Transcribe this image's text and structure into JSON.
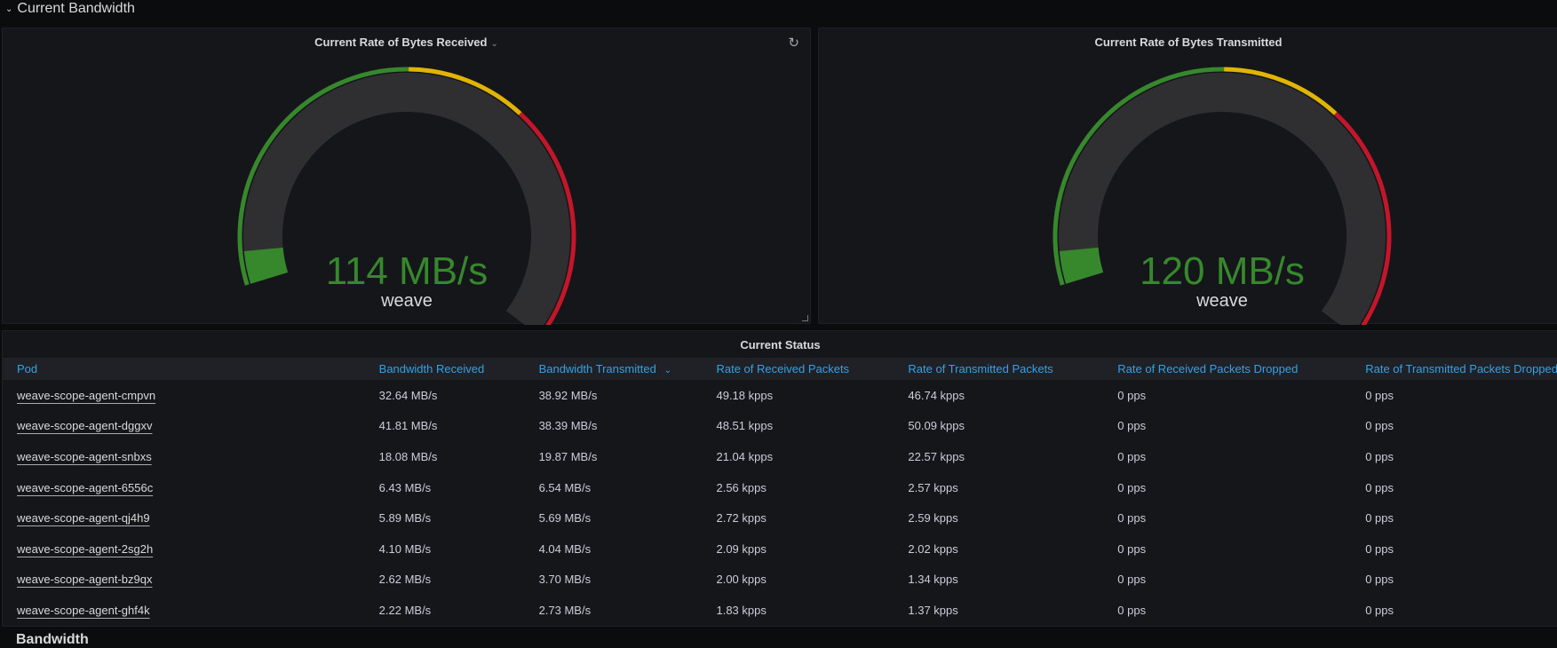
{
  "section": {
    "title": "Current Bandwidth",
    "next_title": "Bandwidth"
  },
  "colors": {
    "green": "#37872d",
    "yellow": "#e0b400",
    "red": "#c4162a",
    "link": "#33a2e5",
    "gauge_track": "#2f2f32"
  },
  "gauges": [
    {
      "title": "Current Rate of Bytes Received",
      "value": "114 MB/s",
      "label": "weave",
      "fill_fraction": 0.05,
      "thresholds": [
        {
          "color": "green",
          "to": 0.46
        },
        {
          "color": "yellow",
          "to": 0.64
        },
        {
          "color": "red",
          "to": 1.0
        }
      ],
      "icons": [
        "chevron-down-icon",
        "refresh-icon"
      ]
    },
    {
      "title": "Current Rate of Bytes Transmitted",
      "value": "120 MB/s",
      "label": "weave",
      "fill_fraction": 0.05,
      "thresholds": [
        {
          "color": "green",
          "to": 0.46
        },
        {
          "color": "yellow",
          "to": 0.64
        },
        {
          "color": "red",
          "to": 1.0
        }
      ]
    }
  ],
  "table": {
    "title": "Current Status",
    "sort_icon": "chevron-down-icon",
    "columns": [
      "Pod",
      "Bandwidth Received",
      "Bandwidth Transmitted",
      "Rate of Received Packets",
      "Rate of Transmitted Packets",
      "Rate of Received Packets Dropped",
      "Rate of Transmitted Packets Dropped"
    ],
    "rows": [
      [
        "weave-scope-agent-cmpvn",
        "32.64 MB/s",
        "38.92 MB/s",
        "49.18 kpps",
        "46.74 kpps",
        "0 pps",
        "0 pps"
      ],
      [
        "weave-scope-agent-dggxv",
        "41.81 MB/s",
        "38.39 MB/s",
        "48.51 kpps",
        "50.09 kpps",
        "0 pps",
        "0 pps"
      ],
      [
        "weave-scope-agent-snbxs",
        "18.08 MB/s",
        "19.87 MB/s",
        "21.04 kpps",
        "22.57 kpps",
        "0 pps",
        "0 pps"
      ],
      [
        "weave-scope-agent-6556c",
        "6.43 MB/s",
        "6.54 MB/s",
        "2.56 kpps",
        "2.57 kpps",
        "0 pps",
        "0 pps"
      ],
      [
        "weave-scope-agent-qj4h9",
        "5.89 MB/s",
        "5.69 MB/s",
        "2.72 kpps",
        "2.59 kpps",
        "0 pps",
        "0 pps"
      ],
      [
        "weave-scope-agent-2sg2h",
        "4.10 MB/s",
        "4.04 MB/s",
        "2.09 kpps",
        "2.02 kpps",
        "0 pps",
        "0 pps"
      ],
      [
        "weave-scope-agent-bz9qx",
        "2.62 MB/s",
        "3.70 MB/s",
        "2.00 kpps",
        "1.34 kpps",
        "0 pps",
        "0 pps"
      ],
      [
        "weave-scope-agent-ghf4k",
        "2.22 MB/s",
        "2.73 MB/s",
        "1.83 kpps",
        "1.37 kpps",
        "0 pps",
        "0 pps"
      ]
    ]
  }
}
